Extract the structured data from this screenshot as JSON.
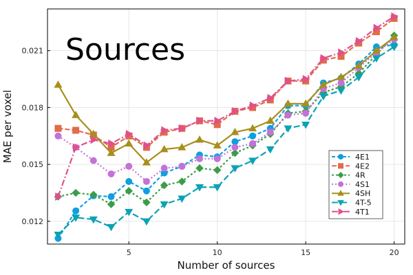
{
  "chart_data": {
    "type": "line",
    "annotation": "Sources",
    "xlabel": "Number of sources",
    "ylabel": "MAE per voxel",
    "xlim": [
      0.4,
      20.6
    ],
    "ylim": [
      0.0108,
      0.0232
    ],
    "xticks": [
      5,
      10,
      15,
      20
    ],
    "xtick_labels": [
      "5",
      "10",
      "15",
      "20"
    ],
    "yticks": [
      0.012,
      0.015,
      0.018,
      0.021
    ],
    "ytick_labels": [
      "0.012",
      "0.015",
      "0.018",
      "0.021"
    ],
    "grid": true,
    "legend_position": "bottom-right",
    "x": [
      1,
      2,
      3,
      4,
      5,
      6,
      7,
      8,
      9,
      10,
      11,
      12,
      13,
      14,
      15,
      16,
      17,
      18,
      19,
      20
    ],
    "series": [
      {
        "name": "4E1",
        "color": "#0f9fe0",
        "marker": "circle",
        "dash": "5,3",
        "values": [
          0.0111,
          0.01255,
          0.01335,
          0.0133,
          0.0141,
          0.0136,
          0.01455,
          0.0149,
          0.0155,
          0.0154,
          0.0162,
          0.0165,
          0.0169,
          0.0181,
          0.0181,
          0.0193,
          0.01955,
          0.0203,
          0.0212,
          0.0213
        ]
      },
      {
        "name": "4E2",
        "color": "#e26b48",
        "marker": "square",
        "dash": "7,3",
        "values": [
          0.0169,
          0.0168,
          0.01655,
          0.0159,
          0.0165,
          0.0159,
          0.0167,
          0.0169,
          0.0173,
          0.0171,
          0.0178,
          0.018,
          0.0184,
          0.0194,
          0.0194,
          0.0205,
          0.0207,
          0.0214,
          0.022,
          0.0227
        ]
      },
      {
        "name": "4R",
        "color": "#3b9c4a",
        "marker": "diamond",
        "dash": "3,3",
        "values": [
          0.0133,
          0.0135,
          0.0134,
          0.0129,
          0.0136,
          0.013,
          0.0139,
          0.0141,
          0.0148,
          0.0147,
          0.0156,
          0.016,
          0.0166,
          0.0177,
          0.0178,
          0.0188,
          0.0191,
          0.0198,
          0.0208,
          0.0218
        ]
      },
      {
        "name": "4S1",
        "color": "#c372d6",
        "marker": "circle",
        "dash": "2,3",
        "values": [
          0.0165,
          0.0159,
          0.0152,
          0.0145,
          0.0149,
          0.0141,
          0.0148,
          0.0149,
          0.0153,
          0.0153,
          0.0159,
          0.0161,
          0.0167,
          0.0176,
          0.0177,
          0.019,
          0.0193,
          0.0201,
          0.0209,
          0.0216
        ]
      },
      {
        "name": "4SH",
        "color": "#a88f1c",
        "marker": "triangle-up",
        "dash": "",
        "values": [
          0.0192,
          0.0176,
          0.0166,
          0.0156,
          0.0161,
          0.0151,
          0.0158,
          0.0159,
          0.0163,
          0.016,
          0.0167,
          0.0169,
          0.0173,
          0.0182,
          0.0182,
          0.0192,
          0.0196,
          0.0202,
          0.021,
          0.0217
        ]
      },
      {
        "name": "4T-5",
        "color": "#0aa3b3",
        "marker": "triangle-down",
        "dash": "9,4",
        "values": [
          0.0113,
          0.0122,
          0.0121,
          0.0117,
          0.0125,
          0.012,
          0.0129,
          0.0132,
          0.0138,
          0.0138,
          0.0148,
          0.0152,
          0.0158,
          0.0169,
          0.0171,
          0.0186,
          0.0189,
          0.0196,
          0.0206,
          0.0212
        ]
      },
      {
        "name": "4T1",
        "color": "#e0508c",
        "marker": "triangle-right",
        "dash": "9,3,2,3",
        "values": [
          0.0133,
          0.0159,
          0.0163,
          0.0161,
          0.0166,
          0.016,
          0.0168,
          0.0169,
          0.0173,
          0.0173,
          0.0178,
          0.0181,
          0.0185,
          0.0194,
          0.0195,
          0.0206,
          0.0209,
          0.0215,
          0.0222,
          0.0228
        ]
      }
    ]
  }
}
